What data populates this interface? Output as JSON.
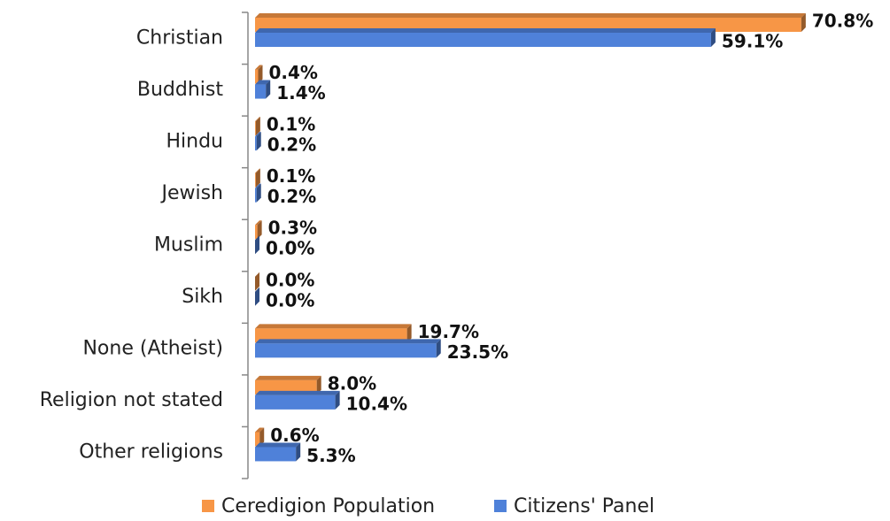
{
  "chart_data": {
    "type": "bar",
    "orientation": "horizontal",
    "categories": [
      "Christian",
      "Buddhist",
      "Hindu",
      "Jewish",
      "Muslim",
      "Sikh",
      "None (Atheist)",
      "Religion not stated",
      "Other religions"
    ],
    "series": [
      {
        "name": "Ceredigion Population",
        "color": "#f79646",
        "values": [
          70.8,
          0.4,
          0.1,
          0.1,
          0.3,
          0.0,
          19.7,
          8.0,
          0.6
        ],
        "value_labels": [
          "70.8%",
          "0.4%",
          "0.1%",
          "0.1%",
          "0.3%",
          "0.0%",
          "19.7%",
          "8.0%",
          "0.6%"
        ]
      },
      {
        "name": "Citizens' Panel",
        "color": "#4f81d9",
        "values": [
          59.1,
          1.4,
          0.2,
          0.2,
          0.0,
          0.0,
          23.5,
          10.4,
          5.3
        ],
        "value_labels": [
          "59.1%",
          "1.4%",
          "0.2%",
          "0.2%",
          "0.0%",
          "0.0%",
          "23.5%",
          "10.4%",
          "5.3%"
        ]
      }
    ],
    "xlim": [
      0,
      80
    ],
    "legend": "bottom"
  }
}
